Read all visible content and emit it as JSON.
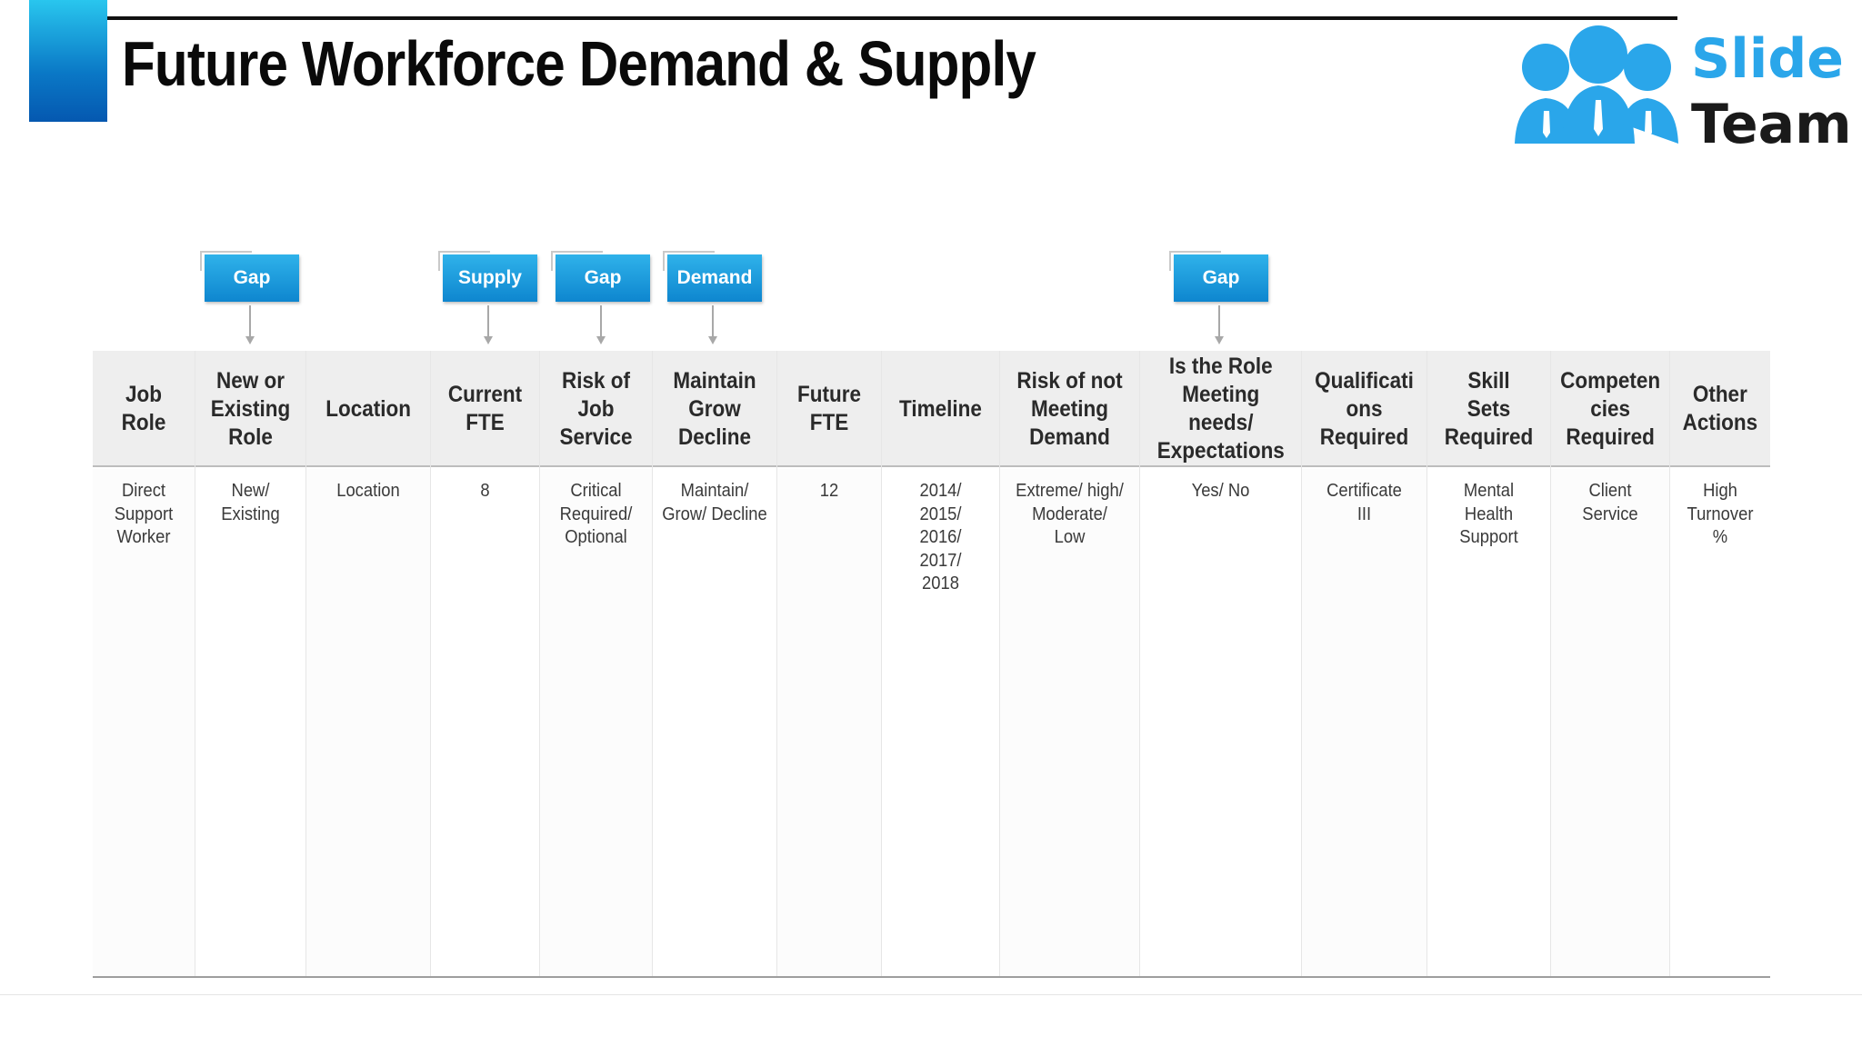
{
  "title": "Future Workforce Demand & Supply",
  "logo": {
    "line1": "Slide",
    "line2": "Team",
    "icon": "team-people-icon",
    "color_primary": "#2aa6ea"
  },
  "tags": [
    {
      "label": "Gap",
      "column": "New or Existing Role"
    },
    {
      "label": "Supply",
      "column": "Current FTE"
    },
    {
      "label": "Gap",
      "column": "Risk of Job Service"
    },
    {
      "label": "Demand",
      "column": "Maintain Grow Decline"
    },
    {
      "label": "Gap",
      "column": "Is the Role Meeting needs/ Expectations"
    }
  ],
  "columns": [
    {
      "header": "Job Role",
      "value": "Direct Support Worker"
    },
    {
      "header": "New or Existing Role",
      "value": "New/ Existing"
    },
    {
      "header": "Location",
      "value": "Location"
    },
    {
      "header": "Current FTE",
      "value": "8"
    },
    {
      "header": "Risk of Job Service",
      "value": "Critical Required/ Optional"
    },
    {
      "header": "Maintain Grow Decline",
      "value": "Maintain/ Grow/ Decline"
    },
    {
      "header": "Future FTE",
      "value": "12"
    },
    {
      "header": "Timeline",
      "value": "2014/ 2015/ 2016/ 2017/ 2018"
    },
    {
      "header": "Risk of not Meeting Demand",
      "value": "Extreme/ high/ Moderate/ Low"
    },
    {
      "header": "Is the Role Meeting needs/ Expectations",
      "value": "Yes/ No"
    },
    {
      "header": "Qualificati ons Required",
      "value": "Certificate III"
    },
    {
      "header": "Skill Sets Required",
      "value": "Mental Health Support"
    },
    {
      "header": "Competen cies Required",
      "value": "Client Service"
    },
    {
      "header": "Other Actions",
      "value": "High Turnover %"
    }
  ],
  "colors": {
    "accent_top": "#29c6ee",
    "accent_bottom": "#0558b0",
    "tag": "#0e86cf",
    "header_bg": "#eeeeee"
  }
}
